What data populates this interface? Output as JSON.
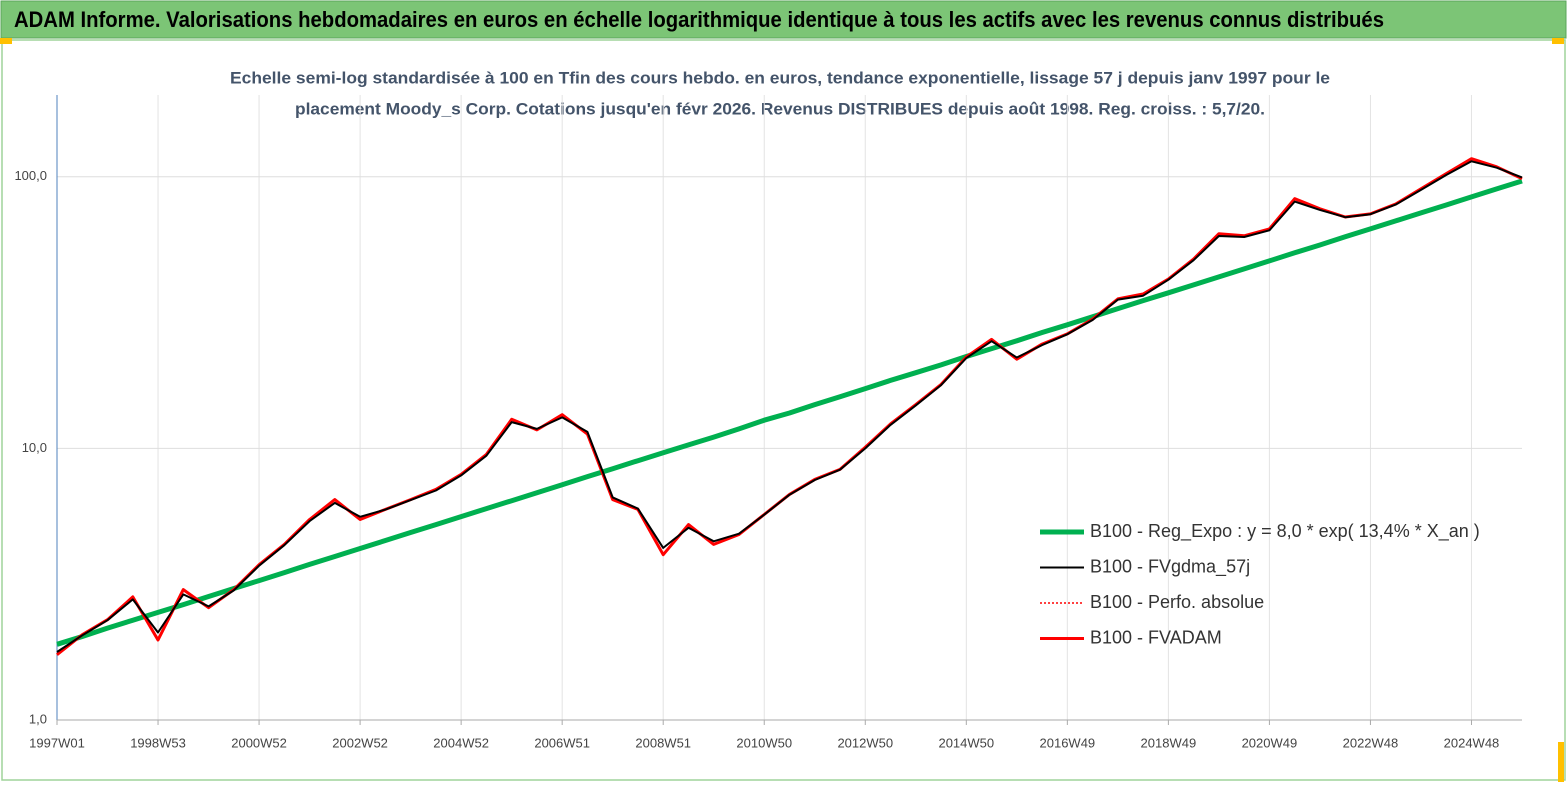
{
  "chart_data": {
    "type": "line",
    "header": "ADAM Informe. Valorisations hebdomadaires en euros en échelle logarithmique identique à tous les actifs avec les revenus connus distribués",
    "title": [
      "Echelle semi-log standardisée à 100 en Tfin des cours hebdo. en euros, tendance exponentielle, lissage 57 j depuis janv 1997 pour le",
      "placement Moody_s Corp. Cotations jusqu'en févr 2026. Revenus DISTRIBUES depuis août 1998. Reg. croiss. : 5,7/20."
    ],
    "categories": [
      "1997W01",
      null,
      null,
      null,
      "1998W53",
      null,
      null,
      null,
      "2000W52",
      null,
      null,
      null,
      "2002W52",
      null,
      null,
      null,
      "2004W52",
      null,
      null,
      null,
      "2006W51",
      null,
      null,
      null,
      "2008W51",
      null,
      null,
      null,
      "2010W50",
      null,
      null,
      null,
      "2012W50",
      null,
      null,
      null,
      "2014W50",
      null,
      null,
      null,
      "2016W49",
      null,
      null,
      null,
      "2018W49",
      null,
      null,
      null,
      "2020W49",
      null,
      null,
      null,
      "2022W48",
      null,
      null,
      null,
      "2024W48",
      null,
      null
    ],
    "log_scale": true,
    "ylim": [
      1,
      200
    ],
    "yticks": [
      {
        "value": 1,
        "label": "1,0"
      },
      {
        "value": 10,
        "label": "10,0"
      },
      {
        "value": 100,
        "label": "100,0"
      }
    ],
    "grid": true,
    "legend": "center-right",
    "series": [
      {
        "name": "B100 - Reg_Expo : y = 8,0 * exp( 13,4% *  X_an )",
        "color": "#00b050",
        "style": "solid",
        "values": [
          1.9,
          2.03,
          2.18,
          2.33,
          2.49,
          2.66,
          2.85,
          3.05,
          3.26,
          3.49,
          3.74,
          4.0,
          4.28,
          4.58,
          4.9,
          5.24,
          5.61,
          6.0,
          6.42,
          6.87,
          7.35,
          7.87,
          8.42,
          9.01,
          9.64,
          10.3,
          11.0,
          11.8,
          12.7,
          13.5,
          14.5,
          15.5,
          16.6,
          17.8,
          19.0,
          20.3,
          21.8,
          23.3,
          24.9,
          26.7,
          28.5,
          30.5,
          32.7,
          35.0,
          37.4,
          40.0,
          42.8,
          45.8,
          49.0,
          52.5,
          56.1,
          60.1,
          64.3,
          68.8,
          73.6,
          78.7,
          84.3,
          90.2,
          96.5
        ]
      },
      {
        "name": "B100 - FVgdma_57j",
        "color": "#000000",
        "style": "solid",
        "values": [
          1.78,
          2.05,
          2.33,
          2.78,
          2.1,
          2.9,
          2.62,
          3.0,
          3.7,
          4.4,
          5.4,
          6.3,
          5.6,
          5.95,
          6.45,
          7.0,
          7.95,
          9.4,
          12.5,
          11.8,
          13.0,
          11.5,
          6.6,
          6.0,
          4.3,
          5.1,
          4.55,
          4.85,
          5.7,
          6.75,
          7.65,
          8.35,
          10.0,
          12.2,
          14.4,
          17.1,
          21.5,
          24.8,
          21.6,
          24.0,
          26.3,
          29.7,
          35.3,
          36.5,
          41.8,
          49.3,
          60.5,
          60.0,
          63.5,
          81.0,
          75.5,
          71.0,
          72.8,
          79.0,
          89.5,
          101.5,
          114.0,
          108.0,
          99.5
        ]
      },
      {
        "name": "B100 - Perfo. absolue",
        "color": "#ff0000",
        "style": "dotted",
        "values": [
          1.74,
          2.06,
          2.34,
          2.84,
          1.97,
          3.02,
          2.59,
          3.02,
          3.73,
          4.43,
          5.47,
          6.48,
          5.47,
          5.96,
          6.48,
          7.06,
          8.02,
          9.5,
          12.8,
          11.7,
          13.3,
          11.3,
          6.48,
          5.96,
          4.06,
          5.24,
          4.43,
          4.82,
          5.71,
          6.77,
          7.69,
          8.37,
          10.1,
          12.3,
          14.5,
          17.2,
          21.7,
          25.2,
          21.3,
          24.2,
          26.4,
          29.9,
          35.5,
          37.0,
          42.0,
          49.8,
          61.7,
          60.6,
          64.3,
          83.0,
          76.2,
          71.1,
          73.0,
          79.4,
          90.3,
          102.6,
          116.5,
          108.8,
          98.4
        ]
      },
      {
        "name": "B100 - FVADAM",
        "color": "#ff0000",
        "style": "thick",
        "values": [
          1.74,
          2.06,
          2.34,
          2.84,
          1.97,
          3.02,
          2.59,
          3.02,
          3.73,
          4.43,
          5.47,
          6.48,
          5.47,
          5.96,
          6.48,
          7.06,
          8.02,
          9.5,
          12.8,
          11.7,
          13.3,
          11.3,
          6.48,
          5.96,
          4.06,
          5.24,
          4.43,
          4.82,
          5.71,
          6.77,
          7.69,
          8.37,
          10.1,
          12.3,
          14.5,
          17.2,
          21.7,
          25.2,
          21.3,
          24.2,
          26.4,
          29.9,
          35.5,
          37.0,
          42.0,
          49.8,
          61.7,
          60.6,
          64.3,
          83.0,
          76.2,
          71.1,
          73.0,
          79.4,
          90.3,
          102.6,
          116.5,
          108.8,
          98.4
        ]
      }
    ]
  }
}
